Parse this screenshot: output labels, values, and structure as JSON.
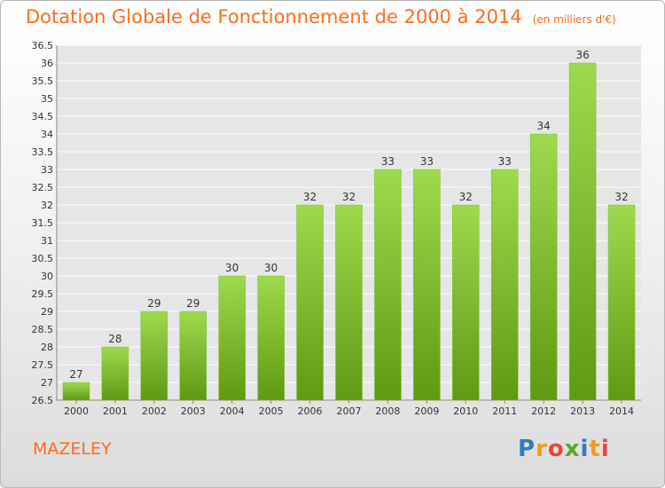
{
  "title": "Dotation Globale de Fonctionnement de 2000 à 2014",
  "unit": "(en milliers d'€)",
  "commune": "MAZELEY",
  "logo": [
    "P",
    "r",
    "o",
    "x",
    "i",
    "t",
    "i"
  ],
  "colors": {
    "title": "#ff6a1e",
    "bar_light": "#9fd94e",
    "bar_dark": "#5e9a12",
    "grid": "#ffffff",
    "logo": [
      "#2f7ec1",
      "#f39a1f",
      "#e8473d",
      "#5aa830",
      "#2f7ec1",
      "#f39a1f",
      "#e8473d"
    ]
  },
  "chart_data": {
    "type": "bar",
    "title": "Dotation Globale de Fonctionnement de 2000 à 2014",
    "ylabel": "",
    "xlabel": "",
    "categories": [
      "2000",
      "2001",
      "2002",
      "2003",
      "2004",
      "2005",
      "2006",
      "2007",
      "2008",
      "2009",
      "2010",
      "2011",
      "2012",
      "2013",
      "2014"
    ],
    "values": [
      27,
      28,
      29,
      29,
      30,
      30,
      32,
      32,
      33,
      33,
      32,
      33,
      34,
      36,
      32
    ],
    "ylim": [
      26.5,
      36.5
    ],
    "yticks": [
      "26.5",
      "27",
      "27.5",
      "28",
      "28.5",
      "29",
      "29.5",
      "30",
      "30.5",
      "31",
      "31.5",
      "32",
      "32.5",
      "33",
      "33.5",
      "34",
      "34.5",
      "35",
      "35.5",
      "36",
      "36.5"
    ],
    "grid": true,
    "legend": "none"
  }
}
